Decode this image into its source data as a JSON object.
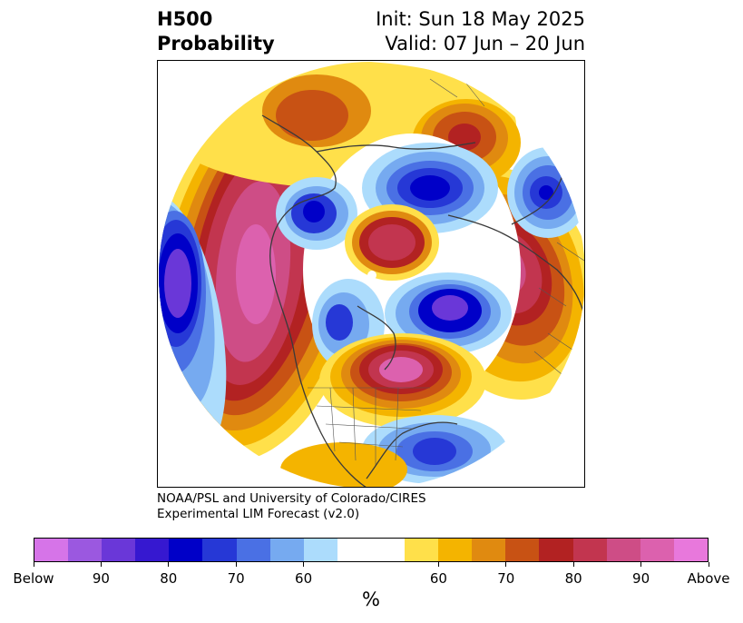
{
  "title": {
    "left_line1": "H500",
    "left_line2": "Probability",
    "right_line1": "Init: Sun 18 May 2025",
    "right_line2": "Valid: 07 Jun – 20 Jun"
  },
  "credit": {
    "line1": "NOAA/PSL and University of Colorado/CIRES",
    "line2": "Experimental LIM Forecast (v2.0)"
  },
  "colorbar": {
    "unit_label": "%",
    "colors": [
      "#d674e8",
      "#9b58e0",
      "#6a37d8",
      "#3618d0",
      "#0000c8",
      "#2638d6",
      "#4a70e4",
      "#76aaf0",
      "#acdcfc",
      "#ffffff",
      "#ffffff",
      "#ffe04a",
      "#f4b400",
      "#e08a10",
      "#c85214",
      "#b22222",
      "#c2354f",
      "#ce4d86",
      "#dc61ae",
      "#e878dc"
    ],
    "tick_labels": [
      "Below",
      "90",
      "80",
      "70",
      "60",
      "60",
      "70",
      "80",
      "90",
      "Above"
    ]
  },
  "map": {
    "projection": "north-polar-stereographic",
    "variable": "H500 probability",
    "below_color": "#0000c8",
    "above_color": "#b22222"
  }
}
